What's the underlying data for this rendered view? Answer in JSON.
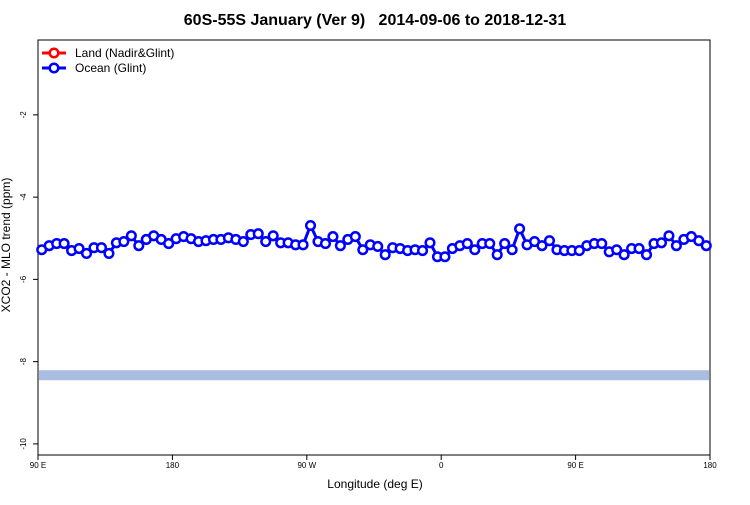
{
  "chart_data": {
    "type": "line",
    "title": "60S-55S January (Ver 9)   2014-09-06 to 2018-12-31",
    "x_label": "Longitude (deg E)",
    "y_label": "XCO2 - MLO trend (ppm)",
    "xlim": [
      90,
      540
    ],
    "ylim": [
      -10.27,
      -0.18
    ],
    "xticks": [
      {
        "value": 90,
        "label": "90 E"
      },
      {
        "value": 180,
        "label": "180"
      },
      {
        "value": 270,
        "label": "90 W"
      },
      {
        "value": 360,
        "label": "0"
      },
      {
        "value": 450,
        "label": "90 E"
      },
      {
        "value": 540,
        "label": "180"
      }
    ],
    "yticks": [
      -2,
      -4,
      -6,
      -8,
      -10
    ],
    "legend": "top-left",
    "band": {
      "value": -8.33,
      "color": "#a8bde0"
    },
    "x": [
      92.5,
      97.5,
      102.5,
      107.5,
      112.5,
      117.5,
      122.5,
      127.5,
      132.5,
      137.5,
      142.5,
      147.5,
      152.5,
      157.5,
      162.5,
      167.5,
      172.5,
      177.5,
      182.5,
      187.5,
      192.5,
      197.5,
      202.5,
      207.5,
      212.5,
      217.5,
      222.5,
      227.5,
      232.5,
      237.5,
      242.5,
      247.5,
      252.5,
      257.5,
      262.5,
      267.5,
      272.5,
      277.5,
      282.5,
      287.5,
      292.5,
      297.5,
      302.5,
      307.5,
      312.5,
      317.5,
      322.5,
      327.5,
      332.5,
      337.5,
      342.5,
      347.5,
      352.5,
      357.5,
      362.5,
      367.5,
      372.5,
      377.5,
      382.5,
      387.5,
      392.5,
      397.5,
      402.5,
      407.5,
      412.5,
      417.5,
      422.5,
      427.5,
      432.5,
      437.5,
      442.5,
      447.5,
      452.5,
      457.5,
      462.5,
      467.5,
      472.5,
      477.5,
      482.5,
      487.5,
      492.5,
      497.5,
      502.5,
      507.5,
      512.5,
      517.5,
      522.5,
      527.5,
      532.5,
      537.5
    ],
    "series": [
      {
        "name": "Land (Nadir&Glint)",
        "color": "#ff0000",
        "values": [
          null,
          null,
          null,
          null,
          null,
          null,
          null,
          null,
          null,
          null,
          null,
          null,
          null,
          null,
          null,
          null,
          null,
          null,
          null,
          null,
          null,
          null,
          null,
          null,
          null,
          null,
          null,
          null,
          null,
          null,
          null,
          null,
          null,
          null,
          null,
          null,
          null,
          null,
          null,
          null,
          null,
          null,
          null,
          null,
          null,
          null,
          null,
          null,
          null,
          null,
          null,
          null,
          null,
          null,
          null,
          null,
          null,
          null,
          null,
          null,
          null,
          null,
          null,
          null,
          null,
          null,
          null,
          null,
          null,
          null,
          null,
          null,
          null,
          null,
          null,
          null,
          null,
          null,
          null,
          null,
          null,
          null,
          null,
          null,
          null,
          null,
          null,
          null,
          null,
          null
        ]
      },
      {
        "name": "Ocean (Glint)",
        "color": "#0000ff",
        "values": [
          -5.28,
          -5.18,
          -5.13,
          -5.13,
          -5.3,
          -5.25,
          -5.37,
          -5.23,
          -5.23,
          -5.37,
          -5.11,
          -5.08,
          -4.94,
          -5.18,
          -5.03,
          -4.94,
          -5.03,
          -5.13,
          -5.01,
          -4.96,
          -5.01,
          -5.08,
          -5.06,
          -5.03,
          -5.03,
          -4.99,
          -5.03,
          -5.08,
          -4.91,
          -4.89,
          -5.08,
          -4.94,
          -5.11,
          -5.11,
          -5.16,
          -5.16,
          -4.69,
          -5.08,
          -5.13,
          -4.96,
          -5.18,
          -5.03,
          -4.96,
          -5.28,
          -5.16,
          -5.2,
          -5.4,
          -5.23,
          -5.25,
          -5.3,
          -5.28,
          -5.3,
          -5.11,
          -5.45,
          -5.45,
          -5.25,
          -5.18,
          -5.13,
          -5.28,
          -5.13,
          -5.13,
          -5.4,
          -5.13,
          -5.28,
          -4.77,
          -5.16,
          -5.08,
          -5.18,
          -5.06,
          -5.28,
          -5.3,
          -5.3,
          -5.3,
          -5.18,
          -5.13,
          -5.13,
          -5.33,
          -5.28,
          -5.4,
          -5.25,
          -5.25,
          -5.4,
          -5.13,
          -5.11,
          -4.94,
          -5.18,
          -5.03,
          -4.96,
          -5.06,
          -5.18
        ]
      }
    ]
  }
}
